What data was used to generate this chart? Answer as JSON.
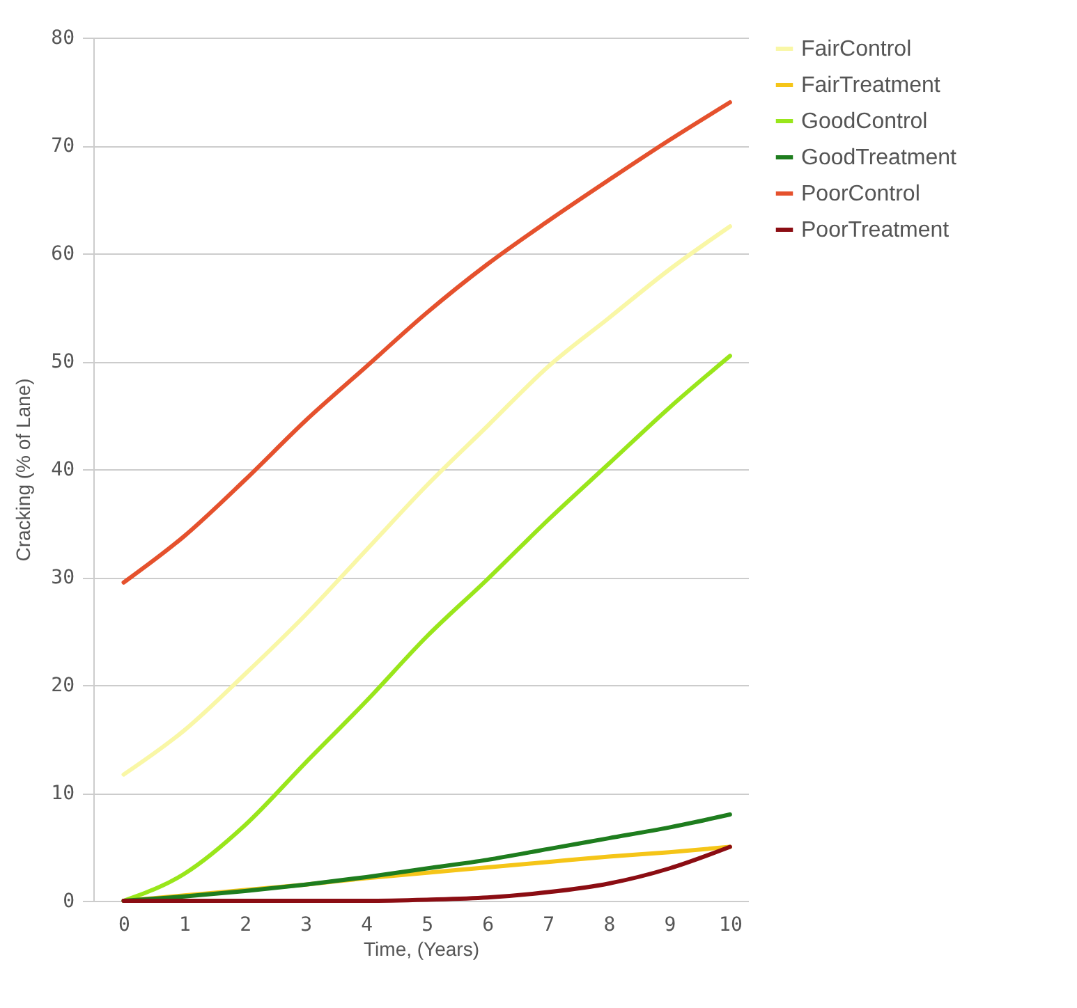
{
  "chart_data": {
    "type": "line",
    "xlabel": "Time, (Years)",
    "ylabel": "Cracking (% of Lane)",
    "x": [
      0,
      1,
      2,
      3,
      4,
      5,
      6,
      7,
      8,
      9,
      10
    ],
    "xlim": [
      -0.5,
      10.3
    ],
    "xticks": [
      0,
      1,
      2,
      3,
      4,
      5,
      6,
      7,
      8,
      9,
      10
    ],
    "ylim": [
      0,
      80
    ],
    "yticks": [
      0,
      10,
      20,
      30,
      40,
      50,
      60,
      70,
      80
    ],
    "grid": "y",
    "legend": "top right",
    "marker": "none",
    "line_style": "solid",
    "series": [
      {
        "name": "FairControl",
        "color": "#f9f7a6",
        "values": [
          11.7,
          15.8,
          21,
          26.5,
          32.5,
          38.5,
          44,
          49.5,
          54,
          58.5,
          62.5
        ]
      },
      {
        "name": "FairTreatment",
        "color": "#f5c518",
        "values": [
          0,
          0.5,
          1,
          1.5,
          2.1,
          2.6,
          3.1,
          3.6,
          4.1,
          4.5,
          5
        ]
      },
      {
        "name": "GoodControl",
        "color": "#99e61b",
        "values": [
          0,
          2.5,
          7,
          12.8,
          18.5,
          24.5,
          29.8,
          35.3,
          40.5,
          45.7,
          50.5
        ]
      },
      {
        "name": "GoodTreatment",
        "color": "#1e7d1e",
        "values": [
          0,
          0.4,
          0.9,
          1.5,
          2.2,
          3,
          3.8,
          4.8,
          5.8,
          6.8,
          8
        ]
      },
      {
        "name": "PoorControl",
        "color": "#e5512d",
        "values": [
          29.5,
          33.8,
          39,
          44.5,
          49.5,
          54.5,
          59,
          63,
          66.8,
          70.5,
          74
        ]
      },
      {
        "name": "PoorTreatment",
        "color": "#8b0d13",
        "values": [
          0,
          0,
          0,
          0,
          0,
          0.1,
          0.3,
          0.8,
          1.6,
          3,
          5
        ]
      }
    ]
  }
}
